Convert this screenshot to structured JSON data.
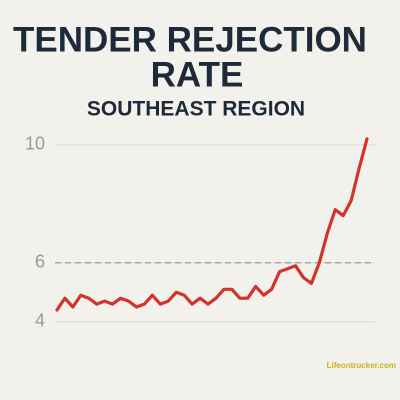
{
  "chart_data": {
    "type": "line",
    "title_lines": [
      "TENDER REJECTION",
      "RATE"
    ],
    "subtitle": "SOUTHEAST REGION",
    "watermark": "Lifeontrucker.com",
    "values": [
      4.4,
      4.8,
      4.5,
      4.9,
      4.8,
      4.6,
      4.7,
      4.6,
      4.8,
      4.7,
      4.5,
      4.6,
      4.9,
      4.6,
      4.7,
      5.0,
      4.9,
      4.6,
      4.8,
      4.6,
      4.8,
      5.1,
      5.1,
      4.8,
      4.8,
      5.2,
      4.9,
      5.1,
      5.7,
      5.8,
      5.9,
      5.5,
      5.3,
      6.0,
      7.0,
      7.8,
      7.6,
      8.1,
      9.2,
      10.2
    ],
    "color": "#d0342c",
    "ylim": [
      2.4,
      10.5
    ],
    "yticks": [
      4,
      6,
      10
    ],
    "grid": true,
    "reference_line": 6
  }
}
